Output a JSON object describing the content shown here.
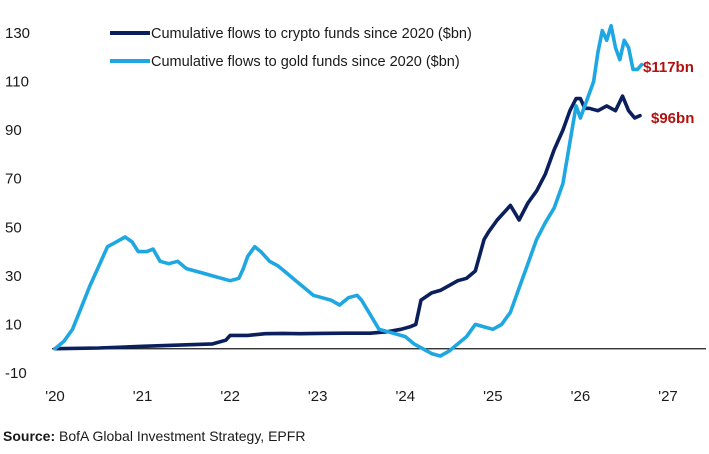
{
  "chart_data": {
    "type": "line",
    "title": "",
    "xlabel": "",
    "ylabel": "",
    "x_ticks": [
      "'20",
      "'21",
      "'22",
      "'23",
      "'24",
      "'25",
      "'26",
      "'27"
    ],
    "y_ticks": [
      -10,
      10,
      30,
      50,
      70,
      90,
      110,
      130
    ],
    "xlim": [
      2020,
      2027
    ],
    "ylim": [
      -10,
      135
    ],
    "grid": false,
    "legend_position": "top-left",
    "series": [
      {
        "name": "Cumulative flows to crypto funds since 2020 ($bn)",
        "color": "#0b1f5c",
        "end_label": "$96bn",
        "points": [
          [
            2020.0,
            0
          ],
          [
            2020.5,
            0.3
          ],
          [
            2021.0,
            1
          ],
          [
            2021.5,
            1.6
          ],
          [
            2021.8,
            2
          ],
          [
            2021.95,
            3.5
          ],
          [
            2022.0,
            5.5
          ],
          [
            2022.2,
            5.5
          ],
          [
            2022.4,
            6.2
          ],
          [
            2022.6,
            6.3
          ],
          [
            2022.8,
            6.2
          ],
          [
            2023.0,
            6.3
          ],
          [
            2023.3,
            6.4
          ],
          [
            2023.6,
            6.4
          ],
          [
            2023.8,
            7
          ],
          [
            2023.95,
            8
          ],
          [
            2024.05,
            9
          ],
          [
            2024.12,
            10
          ],
          [
            2024.18,
            20
          ],
          [
            2024.3,
            23
          ],
          [
            2024.4,
            24
          ],
          [
            2024.5,
            26
          ],
          [
            2024.6,
            28
          ],
          [
            2024.7,
            29
          ],
          [
            2024.8,
            32
          ],
          [
            2024.9,
            45
          ],
          [
            2024.95,
            48
          ],
          [
            2025.05,
            53
          ],
          [
            2025.15,
            57
          ],
          [
            2025.2,
            59
          ],
          [
            2025.25,
            56
          ],
          [
            2025.3,
            53
          ],
          [
            2025.4,
            60
          ],
          [
            2025.5,
            65
          ],
          [
            2025.6,
            72
          ],
          [
            2025.7,
            82
          ],
          [
            2025.8,
            90
          ],
          [
            2025.88,
            98
          ],
          [
            2025.95,
            103
          ],
          [
            2026.0,
            103
          ],
          [
            2026.05,
            99
          ],
          [
            2026.1,
            99
          ],
          [
            2026.2,
            98
          ],
          [
            2026.3,
            100
          ],
          [
            2026.4,
            98
          ],
          [
            2026.48,
            104
          ],
          [
            2026.55,
            98
          ],
          [
            2026.62,
            95
          ],
          [
            2026.68,
            96
          ]
        ]
      },
      {
        "name": "Cumulative flows to gold funds since 2020 ($bn)",
        "color": "#1ea7e1",
        "end_label": "$117bn",
        "points": [
          [
            2020.0,
            0
          ],
          [
            2020.1,
            3
          ],
          [
            2020.2,
            8
          ],
          [
            2020.3,
            17
          ],
          [
            2020.4,
            26
          ],
          [
            2020.5,
            34
          ],
          [
            2020.6,
            42
          ],
          [
            2020.7,
            44
          ],
          [
            2020.8,
            46
          ],
          [
            2020.88,
            44
          ],
          [
            2020.95,
            40
          ],
          [
            2021.05,
            40
          ],
          [
            2021.12,
            41
          ],
          [
            2021.2,
            36
          ],
          [
            2021.3,
            35
          ],
          [
            2021.4,
            36
          ],
          [
            2021.5,
            33
          ],
          [
            2021.6,
            32
          ],
          [
            2021.7,
            31
          ],
          [
            2021.8,
            30
          ],
          [
            2021.9,
            29
          ],
          [
            2022.0,
            28
          ],
          [
            2022.1,
            29
          ],
          [
            2022.15,
            33
          ],
          [
            2022.2,
            38
          ],
          [
            2022.28,
            42
          ],
          [
            2022.35,
            40
          ],
          [
            2022.45,
            36
          ],
          [
            2022.55,
            34
          ],
          [
            2022.65,
            31
          ],
          [
            2022.75,
            28
          ],
          [
            2022.85,
            25
          ],
          [
            2022.95,
            22
          ],
          [
            2023.05,
            21
          ],
          [
            2023.15,
            20
          ],
          [
            2023.25,
            18
          ],
          [
            2023.35,
            21
          ],
          [
            2023.45,
            22
          ],
          [
            2023.5,
            20
          ],
          [
            2023.6,
            14
          ],
          [
            2023.7,
            8
          ],
          [
            2023.8,
            7
          ],
          [
            2023.9,
            6
          ],
          [
            2024.0,
            5
          ],
          [
            2024.1,
            2
          ],
          [
            2024.2,
            0
          ],
          [
            2024.3,
            -2
          ],
          [
            2024.4,
            -3
          ],
          [
            2024.5,
            -1
          ],
          [
            2024.6,
            2
          ],
          [
            2024.7,
            5
          ],
          [
            2024.8,
            10
          ],
          [
            2024.9,
            9
          ],
          [
            2025.0,
            8
          ],
          [
            2025.1,
            10
          ],
          [
            2025.2,
            15
          ],
          [
            2025.3,
            25
          ],
          [
            2025.4,
            35
          ],
          [
            2025.5,
            45
          ],
          [
            2025.6,
            52
          ],
          [
            2025.7,
            58
          ],
          [
            2025.8,
            68
          ],
          [
            2025.88,
            85
          ],
          [
            2025.95,
            100
          ],
          [
            2026.0,
            95
          ],
          [
            2026.1,
            105
          ],
          [
            2026.15,
            110
          ],
          [
            2026.2,
            122
          ],
          [
            2026.25,
            131
          ],
          [
            2026.3,
            127
          ],
          [
            2026.35,
            133
          ],
          [
            2026.4,
            124
          ],
          [
            2026.45,
            119
          ],
          [
            2026.5,
            127
          ],
          [
            2026.55,
            124
          ],
          [
            2026.6,
            115
          ],
          [
            2026.65,
            115
          ],
          [
            2026.7,
            117
          ]
        ]
      }
    ]
  },
  "source": {
    "label": "Source:",
    "text": " BofA Global Investment Strategy, EPFR"
  }
}
